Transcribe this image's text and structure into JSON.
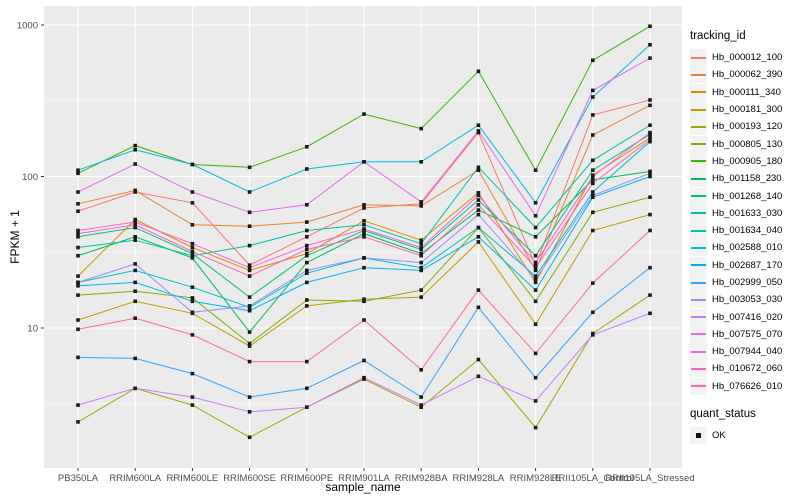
{
  "figure": {
    "background": "#FFFFFF",
    "panel_background": "#EBEBEB",
    "grid_color": "#FFFFFF",
    "tick_mark_color": "#333333",
    "tick_label_color": "#4D4D4D",
    "point_color": "#1A1A1A"
  },
  "chart_data": {
    "type": "line",
    "title": "",
    "xlabel": "sample_name",
    "ylabel": "FPKM + 1",
    "y_scale": "log10",
    "grid": true,
    "legend_position": "right",
    "legend_title": "tracking_id",
    "quant_legend": {
      "title": "quant_status",
      "items": [
        "OK"
      ]
    },
    "point_shape": "square",
    "y_major_ticks": [
      {
        "value": 10,
        "label": "10"
      },
      {
        "value": 100,
        "label": "100"
      },
      {
        "value": 1000,
        "label": "1000"
      }
    ],
    "y_minor_ticks": [
      3.162,
      31.62,
      316.2
    ],
    "ylim": [
      1.3,
      1300
    ],
    "categories": [
      "PB350LA",
      "RRIM600LA",
      "RRIM600LE",
      "RRIM600SE",
      "RRIM600PE",
      "RRIM901LA",
      "RRIM928BA",
      "RRIM928LA",
      "RRIM928LE",
      "RRII105LA_Control",
      "RRII105LA_Stressed"
    ],
    "series": [
      {
        "name": "Hb_000012_100",
        "color": "#F8766D",
        "values": [
          59,
          79,
          67,
          26,
          40,
          62,
          66,
          195,
          26,
          255,
          320
        ]
      },
      {
        "name": "Hb_000062_390",
        "color": "#EA8331",
        "values": [
          66,
          81,
          48,
          47,
          50,
          65,
          64,
          110,
          24,
          188,
          295
        ]
      },
      {
        "name": "Hb_000111_340",
        "color": "#D89000",
        "values": [
          22,
          52,
          34,
          24,
          31,
          51,
          38,
          78,
          20,
          102,
          180
        ]
      },
      {
        "name": "Hb_000181_300",
        "color": "#C09B00",
        "values": [
          11.3,
          15,
          12.5,
          7.6,
          14,
          15.5,
          16,
          37,
          10.6,
          44,
          56
        ]
      },
      {
        "name": "Hb_000193_120",
        "color": "#A3A500",
        "values": [
          2.4,
          4,
          3.1,
          1.9,
          3,
          4.6,
          3,
          6.2,
          2.2,
          9.2,
          16.5
        ]
      },
      {
        "name": "Hb_000805_130",
        "color": "#7CAE00",
        "values": [
          16.5,
          17.5,
          15.8,
          7.9,
          15.3,
          15,
          17.8,
          46,
          15,
          58,
          73
        ]
      },
      {
        "name": "Hb_000905_180",
        "color": "#39B600",
        "values": [
          105,
          160,
          120,
          115,
          157,
          258,
          207,
          495,
          110,
          585,
          980
        ]
      },
      {
        "name": "Hb_001158_230",
        "color": "#00BB4E",
        "values": [
          30,
          40,
          29,
          9.4,
          27,
          42,
          31,
          60,
          40,
          95,
          108
        ]
      },
      {
        "name": "Hb_001268_140",
        "color": "#00BF7D",
        "values": [
          40,
          46,
          31,
          16,
          30,
          44,
          33,
          70,
          30,
          110,
          190
        ]
      },
      {
        "name": "Hb_001633_030",
        "color": "#00C1A3",
        "values": [
          34,
          38,
          30,
          35,
          44,
          48,
          36,
          115,
          46,
          128,
          218
        ]
      },
      {
        "name": "Hb_001634_040",
        "color": "#00BFC4",
        "values": [
          20,
          24,
          18.6,
          13.7,
          23,
          29,
          25,
          46,
          22,
          79,
          170
        ]
      },
      {
        "name": "Hb_002588_010",
        "color": "#00BAE0",
        "values": [
          110,
          150,
          120,
          79,
          112,
          125,
          125,
          218,
          67,
          335,
          740
        ]
      },
      {
        "name": "Hb_002687_170",
        "color": "#00B0F6",
        "values": [
          19,
          20,
          15,
          13,
          20,
          25,
          24,
          40,
          17.8,
          73,
          100
        ]
      },
      {
        "name": "Hb_002999_050",
        "color": "#35A2FF",
        "values": [
          6.4,
          6.3,
          5,
          3.5,
          4,
          6.1,
          3.5,
          13.7,
          4.7,
          12.7,
          25
        ]
      },
      {
        "name": "Hb_003053_030",
        "color": "#9590FF",
        "values": [
          20,
          26.5,
          12.7,
          14,
          24,
          29,
          27,
          56,
          21,
          75,
          105
        ]
      },
      {
        "name": "Hb_007416_020",
        "color": "#C77CFF",
        "values": [
          3.1,
          4,
          3.5,
          2.8,
          3,
          4.7,
          3.1,
          4.8,
          3.3,
          9,
          12.5
        ]
      },
      {
        "name": "Hb_007575_070",
        "color": "#E76BF3",
        "values": [
          79,
          121,
          79,
          58,
          65,
          125,
          68,
          200,
          55,
          370,
          605
        ]
      },
      {
        "name": "Hb_007944_040",
        "color": "#FA62DB",
        "values": [
          44,
          50,
          36,
          25,
          35,
          45,
          34,
          75,
          27,
          100,
          195
        ]
      },
      {
        "name": "Hb_010672_060",
        "color": "#FF62BC",
        "values": [
          42,
          48,
          32,
          22,
          33,
          40,
          30,
          65,
          25,
          90,
          175
        ]
      },
      {
        "name": "Hb_076626_010",
        "color": "#FF6A98",
        "values": [
          9.8,
          11.6,
          9,
          6,
          6,
          11.3,
          5.3,
          17.8,
          6.8,
          19.8,
          44
        ]
      }
    ]
  }
}
